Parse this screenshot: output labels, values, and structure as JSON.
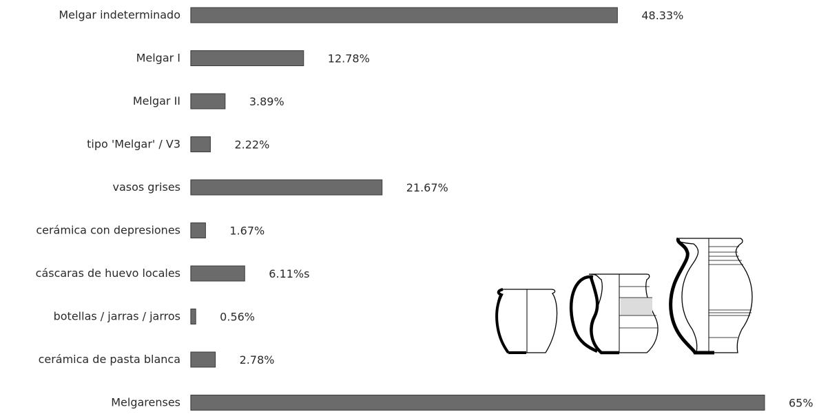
{
  "chart_data": {
    "type": "bar",
    "orientation": "horizontal",
    "categories": [
      "Melgar indeterminado",
      "Melgar I",
      "Melgar II",
      "tipo 'Melgar' / V3",
      "vasos grises",
      "cerámica con depresiones",
      "cáscaras de huevo locales",
      "botellas / jarras / jarros",
      "cerámica de pasta blanca",
      "Melgarenses"
    ],
    "values": [
      48.33,
      12.78,
      3.89,
      2.22,
      21.67,
      1.67,
      6.11,
      0.56,
      2.78,
      65
    ],
    "value_labels": [
      "48.33%",
      "12.78%",
      "3.89%",
      "2.22%",
      "21.67%",
      "1.67%",
      "6.11%s",
      "0.56%",
      "2.78%",
      "65%"
    ],
    "xlim": [
      0,
      65
    ],
    "grid": false,
    "legend": "none",
    "bar_color": "#6b6b6b",
    "title": "",
    "xlabel": "",
    "ylabel": ""
  },
  "illustration": {
    "icon": "pottery-vessels-icon",
    "vessel_count": 3,
    "line_color": "#000000"
  }
}
